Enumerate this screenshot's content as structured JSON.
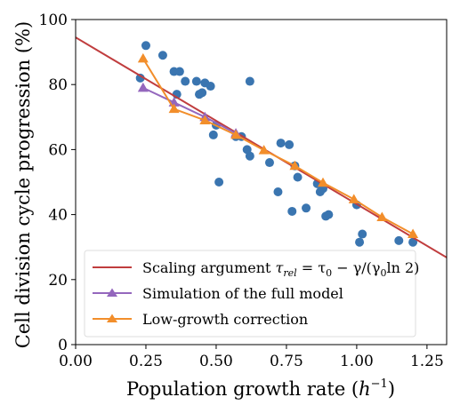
{
  "chart_data": {
    "type": "scatter",
    "xlabel": "Population growth rate  (h⁻¹)",
    "ylabel": "Cell division cycle progression (%)",
    "xlim": [
      0.0,
      1.32
    ],
    "ylim": [
      0,
      100
    ],
    "x_ticks": [
      0.0,
      0.25,
      0.5,
      0.75,
      1.0,
      1.25
    ],
    "x_tick_labels": [
      "0.00",
      "0.25",
      "0.50",
      "0.75",
      "1.00",
      "1.25"
    ],
    "y_ticks": [
      0,
      20,
      40,
      60,
      80,
      100
    ],
    "y_tick_labels": [
      "0",
      "20",
      "40",
      "60",
      "80",
      "100"
    ],
    "grid": false,
    "legend_position": "bottom-left",
    "series": [
      {
        "name": "Scaling argument τrel = τ0 − γ/(γ0 ln 2)",
        "kind": "line",
        "color": "#c03d3e",
        "x": [
          0.0,
          1.32
        ],
        "y": [
          94.5,
          26.8
        ]
      },
      {
        "name": "Simulation of the full model",
        "kind": "line-markers",
        "marker": "triangle",
        "color": "#9467bd",
        "x": [
          0.24,
          0.35,
          0.46,
          0.57
        ],
        "y": [
          79.0,
          74.5,
          70.0,
          65.0
        ]
      },
      {
        "name": "Low-growth correction",
        "kind": "line-markers",
        "marker": "triangle",
        "color": "#f28e2b",
        "x": [
          0.24,
          0.35,
          0.46,
          0.57,
          0.67,
          0.78,
          0.88,
          0.99,
          1.09,
          1.2
        ],
        "y": [
          88.0,
          72.5,
          69.0,
          64.5,
          59.8,
          55.0,
          49.8,
          44.7,
          39.2,
          34.0
        ]
      },
      {
        "name": "",
        "kind": "scatter",
        "color": "#3a75b0",
        "x": [
          0.23,
          0.25,
          0.31,
          0.35,
          0.36,
          0.37,
          0.39,
          0.43,
          0.44,
          0.45,
          0.46,
          0.48,
          0.49,
          0.5,
          0.51,
          0.57,
          0.59,
          0.61,
          0.62,
          0.62,
          0.69,
          0.72,
          0.73,
          0.76,
          0.77,
          0.78,
          0.79,
          0.82,
          0.86,
          0.87,
          0.88,
          0.89,
          0.9,
          1.0,
          1.01,
          1.02,
          1.15,
          1.2
        ],
        "y": [
          82.0,
          92.0,
          89.0,
          84.0,
          77.0,
          84.0,
          81.0,
          81.0,
          77.0,
          77.5,
          80.5,
          79.5,
          64.5,
          67.5,
          50.0,
          64.0,
          64.0,
          60.0,
          58.0,
          81.0,
          56.0,
          47.0,
          62.0,
          61.5,
          41.0,
          55.0,
          51.5,
          42.0,
          49.5,
          47.0,
          48.0,
          39.5,
          40.0,
          43.0,
          31.5,
          34.0,
          32.0,
          31.5
        ]
      }
    ]
  },
  "legend": {
    "items": [
      {
        "pre": "Scaling argument ",
        "math": "τ",
        "sub": "rel",
        "post": " = τ",
        "sub2": "0",
        "post2": " − γ/(γ",
        "sub3": "0",
        "post3": "ln 2)"
      },
      {
        "label": "Simulation of the full model"
      },
      {
        "label": "Low-growth correction"
      }
    ]
  },
  "axes": {
    "xlabel_main": "Population growth rate  (",
    "xlabel_var": "h",
    "xlabel_sup": "−1",
    "xlabel_close": ")",
    "ylabel": "Cell division cycle progression (%)"
  }
}
